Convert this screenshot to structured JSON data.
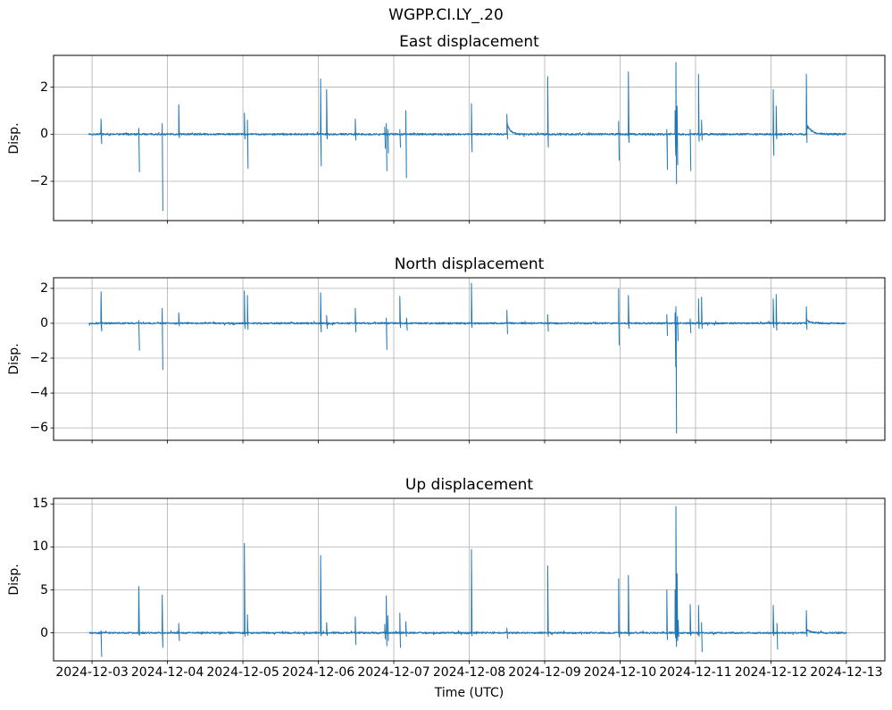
{
  "figure": {
    "suptitle": "WGPP.CI.LY_.20",
    "xlabel": "Time (UTC)",
    "x_tick_labels": [
      "2024-12-03",
      "2024-12-04",
      "2024-12-05",
      "2024-12-06",
      "2024-12-07",
      "2024-12-08",
      "2024-12-09",
      "2024-12-10",
      "2024-12-11",
      "2024-12-12",
      "2024-12-13"
    ],
    "x_tick_days": [
      3,
      4,
      5,
      6,
      7,
      8,
      9,
      10,
      11,
      12,
      13
    ],
    "xlim": [
      2.49,
      13.51
    ],
    "t_start": 2.96,
    "t_end": 13.0,
    "line_color": "#1f77b4",
    "grid_color": "#b0b0b0",
    "spine_color": "#000000",
    "text_color": "#000000",
    "background_color": "#ffffff"
  },
  "chart_data": [
    {
      "type": "line",
      "title": "East displacement",
      "ylabel": "Disp.",
      "ylim": [
        -3.67,
        3.35
      ],
      "yticks": [
        -2,
        0,
        2
      ],
      "noise_amp": 0.04,
      "seed": 7,
      "spikes": [
        {
          "t": 3.12,
          "up": 0.65,
          "down": -0.4
        },
        {
          "t": 3.62,
          "up": 0.25,
          "down": -1.6
        },
        {
          "t": 3.93,
          "up": 0.45,
          "down": -3.25
        },
        {
          "t": 4.15,
          "up": 1.25,
          "down": -0.15
        },
        {
          "t": 5.02,
          "up": 0.9,
          "down": -0.2
        },
        {
          "t": 5.06,
          "up": 0.6,
          "down": -1.45
        },
        {
          "t": 6.03,
          "up": 2.35,
          "down": -1.35
        },
        {
          "t": 6.11,
          "up": 1.9,
          "down": -0.2
        },
        {
          "t": 6.49,
          "up": 0.65,
          "down": -0.25
        },
        {
          "t": 6.88,
          "up": 0.3,
          "down": -0.6
        },
        {
          "t": 6.9,
          "up": 0.45,
          "down": -1.55
        },
        {
          "t": 6.92,
          "up": 0.2,
          "down": -0.8
        },
        {
          "t": 7.08,
          "up": 0.2,
          "down": -0.55
        },
        {
          "t": 7.16,
          "up": 1.0,
          "down": -1.85
        },
        {
          "t": 8.03,
          "up": 1.3,
          "down": -0.75
        },
        {
          "t": 8.5,
          "up": 0.85,
          "down": -0.2,
          "tail": 0.5,
          "tau": 0.04
        },
        {
          "t": 9.04,
          "up": 2.45,
          "down": -0.55
        },
        {
          "t": 9.98,
          "up": 0.55,
          "down": -1.1
        },
        {
          "t": 10.11,
          "up": 2.65,
          "down": -0.35
        },
        {
          "t": 10.62,
          "up": 0.2,
          "down": -1.5
        },
        {
          "t": 10.73,
          "up": 1.0,
          "down": -0.9
        },
        {
          "t": 10.74,
          "up": 3.05,
          "down": -2.1
        },
        {
          "t": 10.755,
          "up": 1.2,
          "down": -1.3
        },
        {
          "t": 10.93,
          "up": 0.2,
          "down": -1.55
        },
        {
          "t": 11.04,
          "up": 2.55,
          "down": -0.3
        },
        {
          "t": 11.08,
          "up": 0.6,
          "down": -0.25
        },
        {
          "t": 12.03,
          "up": 1.9,
          "down": -0.9
        },
        {
          "t": 12.07,
          "up": 1.2,
          "down": -0.2
        },
        {
          "t": 12.47,
          "up": 2.55,
          "down": -0.35,
          "tail": 0.45,
          "tau": 0.06
        }
      ]
    },
    {
      "type": "line",
      "title": "North displacement",
      "ylabel": "Disp.",
      "ylim": [
        -6.71,
        2.61
      ],
      "yticks": [
        -6,
        -4,
        -2,
        0,
        2
      ],
      "noise_amp": 0.05,
      "seed": 13,
      "spikes": [
        {
          "t": 3.12,
          "up": 1.8,
          "down": -0.45
        },
        {
          "t": 3.62,
          "up": 0.15,
          "down": -1.55
        },
        {
          "t": 3.93,
          "up": 0.85,
          "down": -2.65
        },
        {
          "t": 4.15,
          "up": 0.6,
          "down": -0.15
        },
        {
          "t": 5.02,
          "up": 1.85,
          "down": -0.3
        },
        {
          "t": 5.06,
          "up": 1.6,
          "down": -0.35
        },
        {
          "t": 6.03,
          "up": 1.75,
          "down": -0.5
        },
        {
          "t": 6.11,
          "up": 0.45,
          "down": -0.3
        },
        {
          "t": 6.49,
          "up": 0.85,
          "down": -0.5
        },
        {
          "t": 6.9,
          "up": 0.3,
          "down": -1.5
        },
        {
          "t": 7.08,
          "up": 1.55,
          "down": -0.25
        },
        {
          "t": 7.17,
          "up": 0.3,
          "down": -0.4
        },
        {
          "t": 8.03,
          "up": 2.3,
          "down": -0.25
        },
        {
          "t": 8.5,
          "up": 0.75,
          "down": -0.6
        },
        {
          "t": 9.04,
          "up": 0.5,
          "down": -0.45
        },
        {
          "t": 9.98,
          "up": 1.95,
          "down": -1.25
        },
        {
          "t": 10.11,
          "up": 1.6,
          "down": -0.3
        },
        {
          "t": 10.62,
          "up": 0.5,
          "down": -0.7
        },
        {
          "t": 10.73,
          "up": 0.6,
          "down": -2.5
        },
        {
          "t": 10.74,
          "up": 0.95,
          "down": -6.3
        },
        {
          "t": 10.76,
          "up": 0.4,
          "down": -1.0
        },
        {
          "t": 10.93,
          "up": 0.25,
          "down": -0.55
        },
        {
          "t": 11.04,
          "up": 1.4,
          "down": -0.3
        },
        {
          "t": 11.08,
          "up": 1.5,
          "down": -0.3
        },
        {
          "t": 12.03,
          "up": 1.4,
          "down": -0.25
        },
        {
          "t": 12.07,
          "up": 1.65,
          "down": -0.4
        },
        {
          "t": 12.47,
          "up": 0.95,
          "down": -0.35,
          "tail": 0.2,
          "tau": 0.05
        }
      ]
    },
    {
      "type": "line",
      "title": "Up displacement",
      "ylabel": "Disp.",
      "ylim": [
        -3.26,
        15.65
      ],
      "yticks": [
        0,
        5,
        10,
        15
      ],
      "noise_amp": 0.1,
      "seed": 21,
      "spikes": [
        {
          "t": 3.12,
          "up": 0.25,
          "down": -2.75
        },
        {
          "t": 3.62,
          "up": 5.4,
          "down": -0.3
        },
        {
          "t": 3.93,
          "up": 4.4,
          "down": -1.7
        },
        {
          "t": 4.15,
          "up": 1.1,
          "down": -0.9
        },
        {
          "t": 5.02,
          "up": 10.4,
          "down": -0.4
        },
        {
          "t": 5.06,
          "up": 2.1,
          "down": -0.3
        },
        {
          "t": 6.03,
          "up": 9.0,
          "down": -0.35
        },
        {
          "t": 6.11,
          "up": 1.2,
          "down": -0.3
        },
        {
          "t": 6.49,
          "up": 1.85,
          "down": -1.35
        },
        {
          "t": 6.88,
          "up": 1.0,
          "down": -0.7
        },
        {
          "t": 6.9,
          "up": 4.3,
          "down": -1.5
        },
        {
          "t": 6.92,
          "up": 2.0,
          "down": -0.9
        },
        {
          "t": 7.08,
          "up": 2.3,
          "down": -1.7
        },
        {
          "t": 7.16,
          "up": 1.3,
          "down": -0.4
        },
        {
          "t": 8.03,
          "up": 9.7,
          "down": -0.35
        },
        {
          "t": 8.5,
          "up": 0.55,
          "down": -0.65
        },
        {
          "t": 9.04,
          "up": 7.8,
          "down": -0.4
        },
        {
          "t": 9.98,
          "up": 6.3,
          "down": -0.5
        },
        {
          "t": 10.11,
          "up": 6.7,
          "down": -0.35
        },
        {
          "t": 10.62,
          "up": 5.0,
          "down": -0.8
        },
        {
          "t": 10.73,
          "up": 5.0,
          "down": -0.6
        },
        {
          "t": 10.74,
          "up": 14.7,
          "down": -1.6
        },
        {
          "t": 10.755,
          "up": 6.9,
          "down": -0.9
        },
        {
          "t": 10.77,
          "up": 1.5,
          "down": -0.4
        },
        {
          "t": 10.93,
          "up": 3.3,
          "down": -0.3
        },
        {
          "t": 11.04,
          "up": 3.2,
          "down": -0.4
        },
        {
          "t": 11.08,
          "up": 1.2,
          "down": -2.2
        },
        {
          "t": 12.03,
          "up": 3.2,
          "down": -0.3
        },
        {
          "t": 12.08,
          "up": 1.1,
          "down": -1.9
        },
        {
          "t": 12.47,
          "up": 2.6,
          "down": -0.4,
          "tail": 0.4,
          "tau": 0.05
        }
      ]
    }
  ]
}
